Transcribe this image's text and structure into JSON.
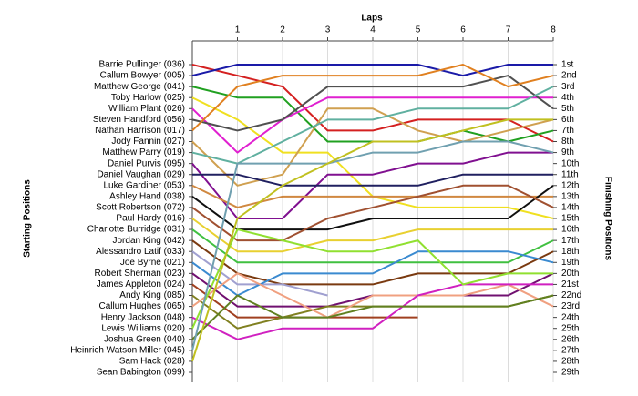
{
  "chart_data": {
    "type": "line",
    "xlabel": "Laps",
    "ylabel": "Starting Positions",
    "y2label": "Finishing Positions",
    "x": [
      0,
      1,
      2,
      3,
      4,
      5,
      6,
      7,
      8
    ],
    "xlim": [
      0,
      8
    ],
    "xticks": [
      1,
      2,
      3,
      4,
      5,
      6,
      7,
      8
    ],
    "ylim": [
      1,
      29
    ],
    "y_inverted": true,
    "grid": true,
    "yticks": [
      {
        "value": 1,
        "label": "Barrie Pullinger (036)"
      },
      {
        "value": 2,
        "label": "Callum Bowyer (005)"
      },
      {
        "value": 3,
        "label": "Matthew George (041)"
      },
      {
        "value": 4,
        "label": "Toby Harlow (025)"
      },
      {
        "value": 5,
        "label": "William Plant (026)"
      },
      {
        "value": 6,
        "label": "Steven Handford (056)"
      },
      {
        "value": 7,
        "label": "Nathan Harrison (017)"
      },
      {
        "value": 8,
        "label": "Jody Fannin (027)"
      },
      {
        "value": 9,
        "label": "Matthew Parry (019)"
      },
      {
        "value": 10,
        "label": "Daniel Purvis (095)"
      },
      {
        "value": 11,
        "label": "Daniel Vaughan (029)"
      },
      {
        "value": 12,
        "label": "Luke Gardiner (053)"
      },
      {
        "value": 13,
        "label": "Ashley Hand (038)"
      },
      {
        "value": 14,
        "label": "Scott Robertson (072)"
      },
      {
        "value": 15,
        "label": "Paul Hardy (016)"
      },
      {
        "value": 16,
        "label": "Charlotte Burridge (031)"
      },
      {
        "value": 17,
        "label": "Jordan King (042)"
      },
      {
        "value": 18,
        "label": "Alessandro Latif (033)"
      },
      {
        "value": 19,
        "label": "Joe Byrne (021)"
      },
      {
        "value": 20,
        "label": "Robert Sherman (023)"
      },
      {
        "value": 21,
        "label": "James Appleton (024)"
      },
      {
        "value": 22,
        "label": "Andy King (085)"
      },
      {
        "value": 23,
        "label": "Callum Hughes (065)"
      },
      {
        "value": 24,
        "label": "Henry Jackson (048)"
      },
      {
        "value": 25,
        "label": "Lewis Williams (020)"
      },
      {
        "value": 26,
        "label": "Joshua Green (040)"
      },
      {
        "value": 27,
        "label": "Heinrich Watson Miller (045)"
      },
      {
        "value": 28,
        "label": "Sam Hack (028)"
      },
      {
        "value": 29,
        "label": "Sean Babington (099)"
      }
    ],
    "y2lim": [
      1,
      29
    ],
    "y2ticks": [
      {
        "value": 1,
        "label": "1st"
      },
      {
        "value": 2,
        "label": "2nd"
      },
      {
        "value": 3,
        "label": "3rd"
      },
      {
        "value": 4,
        "label": "4th"
      },
      {
        "value": 5,
        "label": "5th"
      },
      {
        "value": 6,
        "label": "6th"
      },
      {
        "value": 7,
        "label": "7th"
      },
      {
        "value": 8,
        "label": "8th"
      },
      {
        "value": 9,
        "label": "9th"
      },
      {
        "value": 10,
        "label": "10th"
      },
      {
        "value": 11,
        "label": "11th"
      },
      {
        "value": 12,
        "label": "12th"
      },
      {
        "value": 13,
        "label": "13th"
      },
      {
        "value": 14,
        "label": "14th"
      },
      {
        "value": 15,
        "label": "15th"
      },
      {
        "value": 16,
        "label": "16th"
      },
      {
        "value": 17,
        "label": "17th"
      },
      {
        "value": 18,
        "label": "18th"
      },
      {
        "value": 19,
        "label": "19th"
      },
      {
        "value": 20,
        "label": "20th"
      },
      {
        "value": 21,
        "label": "21st"
      },
      {
        "value": 22,
        "label": "22nd"
      },
      {
        "value": 23,
        "label": "23rd"
      },
      {
        "value": 24,
        "label": "24th"
      },
      {
        "value": 25,
        "label": "25th"
      },
      {
        "value": 26,
        "label": "26th"
      },
      {
        "value": 27,
        "label": "27th"
      },
      {
        "value": 28,
        "label": "28th"
      },
      {
        "value": 29,
        "label": "29th"
      }
    ],
    "series": [
      {
        "color": "#d42020",
        "values": [
          1,
          2,
          3,
          7,
          7,
          6,
          6,
          6,
          8
        ]
      },
      {
        "color": "#1a1aa8",
        "values": [
          2,
          1,
          1,
          1,
          1,
          1,
          2,
          1,
          1
        ]
      },
      {
        "color": "#20a020",
        "values": [
          3,
          4,
          4,
          8,
          8,
          8,
          7,
          8,
          7
        ]
      },
      {
        "color": "#f0e020",
        "values": [
          4,
          6,
          9,
          9,
          13,
          14,
          14,
          14,
          15
        ]
      },
      {
        "color": "#e020d0",
        "values": [
          5,
          9,
          6,
          4,
          4,
          4,
          4,
          4,
          4
        ]
      },
      {
        "color": "#505050",
        "values": [
          6,
          7,
          6,
          3,
          3,
          3,
          3,
          2,
          5
        ]
      },
      {
        "color": "#e08020",
        "values": [
          7,
          3,
          2,
          2,
          2,
          2,
          1,
          3,
          2
        ]
      },
      {
        "color": "#d0a050",
        "values": [
          8,
          12,
          11,
          5,
          5,
          7,
          8,
          7,
          6
        ]
      },
      {
        "color": "#60b0a0",
        "values": [
          9,
          10,
          8,
          6,
          6,
          5,
          5,
          5,
          3
        ]
      },
      {
        "color": "#801090",
        "values": [
          10,
          15,
          15,
          11,
          11,
          10,
          10,
          9,
          9
        ]
      },
      {
        "color": "#202060",
        "values": [
          11,
          11,
          12,
          12,
          12,
          12,
          11,
          11,
          11
        ]
      },
      {
        "color": "#d08840",
        "values": [
          12,
          14,
          13,
          13,
          13,
          13,
          13,
          13,
          13
        ]
      },
      {
        "color": "#101010",
        "values": [
          13,
          16,
          16,
          16,
          15,
          15,
          15,
          15,
          12
        ]
      },
      {
        "color": "#a05030",
        "values": [
          14,
          17,
          17,
          15,
          14,
          13,
          12,
          12,
          14
        ]
      },
      {
        "color": "#e8d030",
        "values": [
          15,
          18,
          18,
          17,
          17,
          16,
          16,
          16,
          16
        ]
      },
      {
        "color": "#40c040",
        "values": [
          16,
          19,
          19,
          19,
          19,
          19,
          19,
          19,
          17
        ]
      },
      {
        "color": "#7a3a10",
        "values": [
          17,
          20,
          21,
          21,
          21,
          20,
          20,
          20,
          18
        ]
      },
      {
        "color": "#a0a0d0",
        "values": [
          18,
          21,
          21,
          22,
          null,
          null,
          null,
          null,
          null
        ]
      },
      {
        "color": "#3a8ad0",
        "values": [
          19,
          22,
          20,
          20,
          20,
          18,
          18,
          18,
          19
        ]
      },
      {
        "color": "#701070",
        "values": [
          20,
          23,
          23,
          23,
          22,
          22,
          22,
          22,
          20
        ]
      },
      {
        "color": "#a04020",
        "values": [
          21,
          24,
          24,
          24,
          24,
          24,
          null,
          null,
          null
        ]
      },
      {
        "color": "#808020",
        "values": [
          22,
          25,
          24,
          23,
          23,
          23,
          23,
          23,
          22
        ]
      },
      {
        "color": "#f0a080",
        "values": [
          23,
          20,
          22,
          24,
          22,
          22,
          22,
          21,
          23
        ]
      },
      {
        "color": "#d020c0",
        "values": [
          24,
          26,
          25,
          25,
          25,
          22,
          21,
          21,
          21
        ]
      },
      {
        "color": "#90e030",
        "values": [
          25,
          16,
          17,
          18,
          18,
          17,
          21,
          20,
          20
        ]
      },
      {
        "color": "#608020",
        "values": [
          26,
          22,
          24,
          24,
          23,
          23,
          23,
          23,
          22
        ]
      },
      {
        "color": "#70a0b0",
        "values": [
          27,
          10,
          10,
          10,
          9,
          9,
          8,
          8,
          9
        ]
      },
      {
        "color": "#c0c020",
        "values": [
          28,
          15,
          12,
          10,
          8,
          8,
          7,
          6,
          6
        ]
      },
      {
        "color": "#909090",
        "values": [
          29,
          null,
          null,
          null,
          null,
          null,
          null,
          null,
          null
        ]
      }
    ]
  }
}
